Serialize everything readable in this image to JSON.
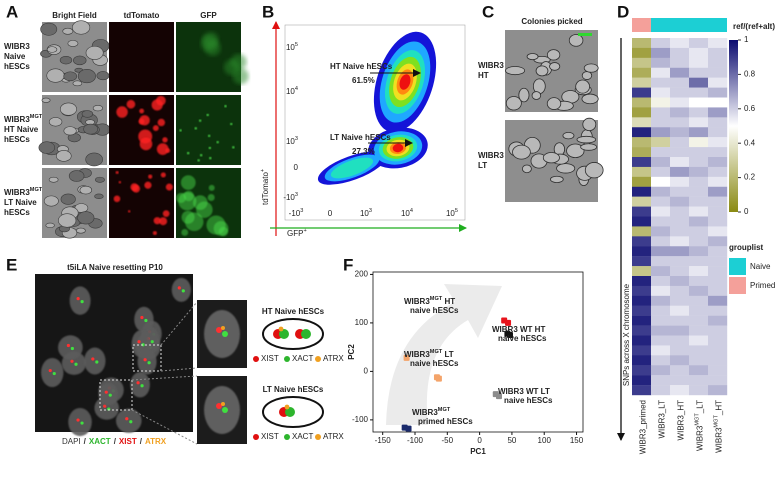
{
  "panel_labels": [
    "A",
    "B",
    "C",
    "D",
    "E",
    "F"
  ],
  "panel_a": {
    "columns": [
      {
        "text": "Bright Field",
        "color": "#222222"
      },
      {
        "text": "tdTomato",
        "color": "#e01010"
      },
      {
        "text": "GFP",
        "color": "#1fae1f"
      }
    ],
    "rows": [
      {
        "name": "WIBR3",
        "lines": [
          "Naive",
          "hESCs"
        ]
      },
      {
        "name": "WIBR3",
        "sup": "MGT",
        "lines": [
          "HT Naive",
          "hESCs"
        ]
      },
      {
        "name": "WIBR3",
        "sup": "MGT",
        "lines": [
          "LT Naive",
          "hESCs"
        ]
      }
    ]
  },
  "panel_b": {
    "ylabel": "tdTomato",
    "ylabel_sup": "+",
    "xlabel": "GFP",
    "xlabel_sup": "+",
    "xticks": [
      {
        "base": "-10",
        "sup": "3"
      },
      {
        "base": "0"
      },
      {
        "base": "10",
        "sup": "3"
      },
      {
        "base": "10",
        "sup": "4"
      },
      {
        "base": "10",
        "sup": "5"
      }
    ],
    "yticks": [
      {
        "base": "10",
        "sup": "5"
      },
      {
        "base": "10",
        "sup": "4"
      },
      {
        "base": "10",
        "sup": "3"
      },
      {
        "base": "0"
      },
      {
        "base": "-10",
        "sup": "3"
      }
    ],
    "gates": [
      {
        "name": "HT Naive hESCs",
        "percent": "61.5%"
      },
      {
        "name": "LT Naive hESCs",
        "percent": "27.3%"
      }
    ]
  },
  "panel_c": {
    "title": "Colonies picked",
    "rows": [
      [
        "WIBR3",
        "HT"
      ],
      [
        "WIBR3",
        "LT"
      ]
    ]
  },
  "panel_d": {
    "title": "t5iLA Naive resetting P10",
    "insets": [
      {
        "title": "HT Naive hESCs"
      },
      {
        "title": "LT Naive hESCs"
      }
    ],
    "legend": [
      {
        "name": "XIST",
        "color": "#e01010"
      },
      {
        "name": "XACT",
        "color": "#2db52d"
      },
      {
        "name": "ATRX",
        "color": "#f0a020"
      }
    ],
    "caption": [
      {
        "text": "DAPI",
        "color": "#333333"
      },
      {
        "text": "/",
        "color": "#333333"
      },
      {
        "text": "XACT",
        "color": "#2db52d"
      },
      {
        "text": "/",
        "color": "#333333"
      },
      {
        "text": "XIST",
        "color": "#e01010"
      },
      {
        "text": "/",
        "color": "#333333"
      },
      {
        "text": "ATRX",
        "color": "#f0a020"
      }
    ]
  },
  "chart_data": {
    "type": "scatter",
    "xlabel": "PC1",
    "ylabel": "PC2",
    "xlim": [
      -165,
      160
    ],
    "ylim": [
      -125,
      205
    ],
    "xticks": [
      -150,
      -100,
      -50,
      0,
      50,
      100,
      150
    ],
    "yticks": [
      -100,
      0,
      100,
      200
    ],
    "series": [
      {
        "name": "WIBR3",
        "sup": "MGT",
        "rest": " HT",
        "line2": "naive hESCs",
        "color": "#e8141c",
        "x": [
          38,
          44
        ],
        "y": [
          105,
          100
        ]
      },
      {
        "name": "WIBR3 WT HT",
        "line2": "naive hESCs",
        "color": "#111111",
        "x": [
          43,
          47
        ],
        "y": [
          78,
          75
        ]
      },
      {
        "name": "WIBR3",
        "sup": "MGT",
        "rest": " LT",
        "line2": "naive hESCs",
        "color": "#f4a46a",
        "x": [
          -113,
          -66,
          -63
        ],
        "y": [
          28,
          -12,
          -15
        ]
      },
      {
        "name": "WIBR3 WT LT",
        "line2": "naive hESCs",
        "color": "#8c8c8c",
        "x": [
          25,
          30
        ],
        "y": [
          -47,
          -51
        ]
      },
      {
        "name": "WIBR3",
        "sup": "MGT",
        "line2": "primed hESCs",
        "color": "#1a2a6c",
        "x": [
          -116,
          -110
        ],
        "y": [
          -116,
          -118
        ]
      }
    ]
  },
  "panel_f": {
    "scale_title": "ref/(ref+alt)",
    "scale_ticks": [
      1,
      0.8,
      0.6,
      0.4,
      0.2,
      0
    ],
    "ylabel": "SNPs across X chromosome",
    "grouplist": {
      "title": "grouplist",
      "items": [
        {
          "name": "Naive",
          "color": "#1ccfd4"
        },
        {
          "name": "Primed",
          "color": "#f4a09a"
        }
      ]
    },
    "column_group_index": [
      1,
      0,
      0,
      0,
      0
    ],
    "columns": [
      {
        "base": "WIBR3_primed"
      },
      {
        "base": "WIBR3_LT"
      },
      {
        "base": "WIBR3_HT"
      },
      {
        "base": "WIBR3",
        "sup": "MGT",
        "rest": "_LT"
      },
      {
        "base": "WIBR3",
        "sup": "MGT",
        "rest": "_HT"
      }
    ],
    "values": [
      [
        0.2,
        0.6,
        0.55,
        0.6,
        0.55
      ],
      [
        0.1,
        0.7,
        0.6,
        0.55,
        0.6
      ],
      [
        0.25,
        0.65,
        0.6,
        0.55,
        0.6
      ],
      [
        0.15,
        0.55,
        0.7,
        0.6,
        0.6
      ],
      [
        0.3,
        0.6,
        0.6,
        0.8,
        0.55
      ],
      [
        0.9,
        0.55,
        0.6,
        0.6,
        0.65
      ],
      [
        0.2,
        0.45,
        0.55,
        0.5,
        0.5
      ],
      [
        0.1,
        0.6,
        0.65,
        0.6,
        0.7
      ],
      [
        0.35,
        0.6,
        0.6,
        0.55,
        0.6
      ],
      [
        0.95,
        0.7,
        0.65,
        0.7,
        0.6
      ],
      [
        0.2,
        0.3,
        0.6,
        0.45,
        0.55
      ],
      [
        0.15,
        0.6,
        0.6,
        0.6,
        0.6
      ],
      [
        0.9,
        0.65,
        0.55,
        0.6,
        0.65
      ],
      [
        0.25,
        0.6,
        0.7,
        0.65,
        0.6
      ],
      [
        0.1,
        0.5,
        0.55,
        0.6,
        0.55
      ],
      [
        0.95,
        0.65,
        0.6,
        0.6,
        0.7
      ],
      [
        0.3,
        0.6,
        0.65,
        0.6,
        0.6
      ],
      [
        0.9,
        0.55,
        0.6,
        0.55,
        0.6
      ],
      [
        0.95,
        0.6,
        0.6,
        0.65,
        0.6
      ],
      [
        0.2,
        0.65,
        0.6,
        0.6,
        0.55
      ],
      [
        0.9,
        0.6,
        0.55,
        0.6,
        0.65
      ],
      [
        0.95,
        0.7,
        0.7,
        0.65,
        0.6
      ],
      [
        0.9,
        0.6,
        0.6,
        0.6,
        0.6
      ],
      [
        0.25,
        0.65,
        0.6,
        0.55,
        0.6
      ],
      [
        0.95,
        0.6,
        0.65,
        0.6,
        0.6
      ],
      [
        0.9,
        0.55,
        0.6,
        0.65,
        0.6
      ],
      [
        0.95,
        0.65,
        0.6,
        0.6,
        0.7
      ],
      [
        0.9,
        0.6,
        0.55,
        0.6,
        0.6
      ],
      [
        0.95,
        0.6,
        0.6,
        0.6,
        0.65
      ],
      [
        0.9,
        0.65,
        0.65,
        0.6,
        0.6
      ],
      [
        0.95,
        0.6,
        0.6,
        0.55,
        0.6
      ],
      [
        0.9,
        0.55,
        0.6,
        0.6,
        0.6
      ],
      [
        0.95,
        0.6,
        0.65,
        0.6,
        0.6
      ],
      [
        0.9,
        0.65,
        0.6,
        0.65,
        0.6
      ],
      [
        0.95,
        0.6,
        0.6,
        0.6,
        0.6
      ],
      [
        0.9,
        0.6,
        0.55,
        0.6,
        0.65
      ]
    ]
  }
}
